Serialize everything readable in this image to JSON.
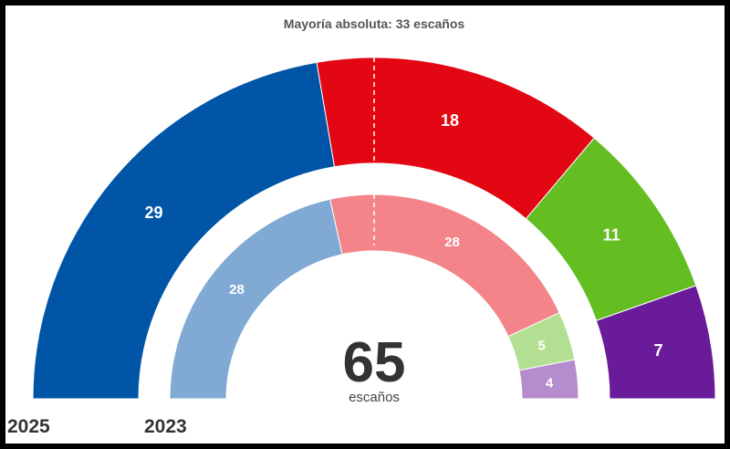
{
  "chart_data": {
    "type": "hemicycle",
    "title": "Mayoría absoluta: 33 escaños",
    "total": 65,
    "total_label": "escaños",
    "majority": 33,
    "rings": [
      {
        "label": "2025",
        "seats": [
          {
            "value": 29,
            "color": "#0055a6"
          },
          {
            "value": 18,
            "color": "#e30613"
          },
          {
            "value": 11,
            "color": "#64be22"
          },
          {
            "value": 7,
            "color": "#6a1b9a"
          }
        ]
      },
      {
        "label": "2023",
        "seats": [
          {
            "value": 28,
            "color": "#80aad3"
          },
          {
            "value": 28,
            "color": "#f3858a"
          },
          {
            "value": 5,
            "color": "#b2df91"
          },
          {
            "value": 4,
            "color": "#b58ccd"
          }
        ]
      }
    ]
  }
}
